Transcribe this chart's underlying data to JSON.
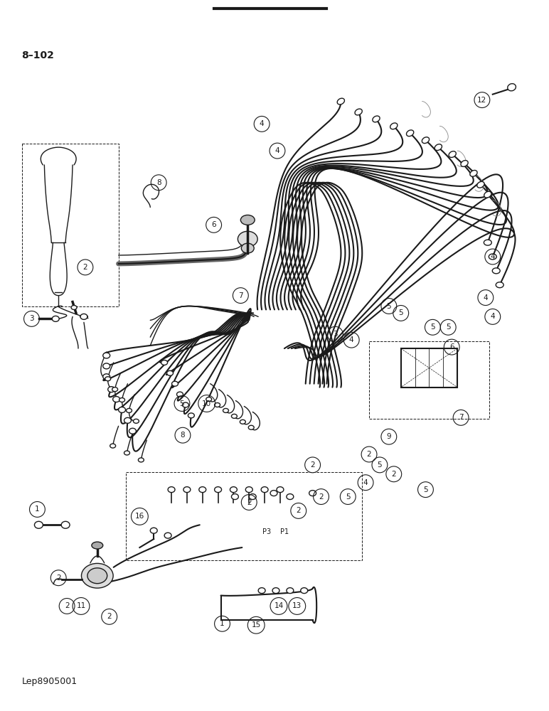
{
  "page_code": "8-102",
  "part_code": "Lep8905001",
  "background_color": "#ffffff",
  "line_color": "#1a1a1a",
  "figsize": [
    7.72,
    10.0
  ],
  "dpi": 100,
  "title_top_line": true
}
